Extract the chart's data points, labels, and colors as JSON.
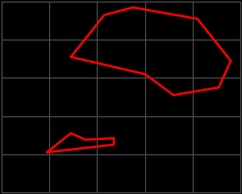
{
  "background_color": "#000000",
  "grid_color": "#555555",
  "line_color": "#ff0000",
  "line_width": 2.0,
  "xlim": [
    0,
    5
  ],
  "ylim": [
    0,
    5
  ],
  "xticks": [
    0,
    1,
    2,
    3,
    4,
    5
  ],
  "yticks": [
    0,
    1,
    2,
    3,
    4,
    5
  ],
  "shape1_x": [
    1.45,
    2.15,
    2.75,
    4.1,
    4.8,
    4.55,
    3.6,
    3.0,
    1.45
  ],
  "shape1_y": [
    3.55,
    4.65,
    4.85,
    4.55,
    3.45,
    2.75,
    2.55,
    3.1,
    3.55
  ],
  "shape2_x": [
    0.95,
    1.45,
    1.75,
    2.35,
    2.35,
    0.95
  ],
  "shape2_y": [
    1.05,
    1.55,
    1.38,
    1.42,
    1.25,
    1.05
  ]
}
